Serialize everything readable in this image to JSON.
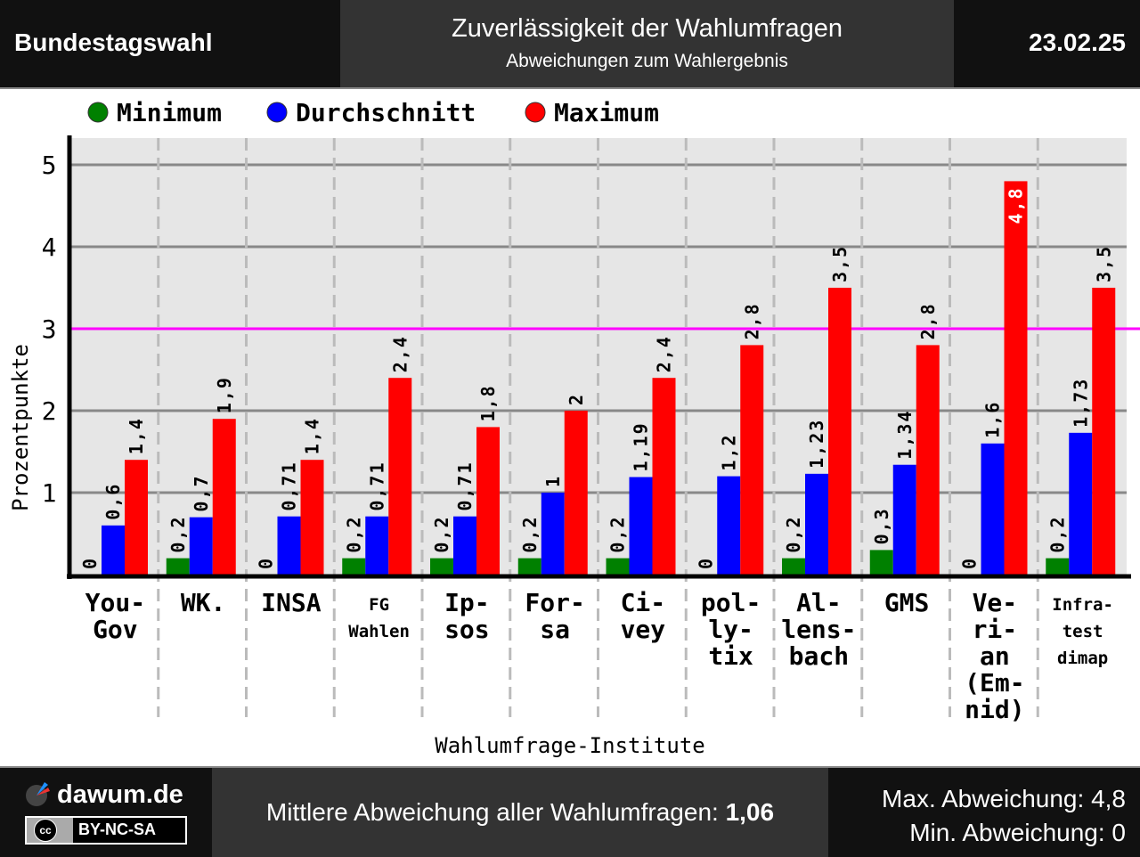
{
  "header": {
    "left": "Bundestagswahl",
    "title": "Zuverlässigkeit der Wahlumfragen",
    "subtitle": "Abweichungen zum Wahlergebnis",
    "date": "23.02.25"
  },
  "footer": {
    "site": "dawum.de",
    "license": "BY-NC-SA",
    "cc": "cc",
    "mean_label": "Mittlere Abweichung aller Wahlumfragen: ",
    "mean_value": "1,06",
    "max": "Max. Abweichung: 4,8",
    "min": "Min. Abweichung: 0"
  },
  "colors": {
    "min": "#008000",
    "avg": "#0000ff",
    "max": "#ff0000",
    "ref": "#ff00ff"
  },
  "chart_data": {
    "type": "bar",
    "xlabel": "Wahlumfrage-Institute",
    "ylabel": "Prozentpunkte",
    "ylim": [
      0,
      5.3
    ],
    "yticks": [
      1,
      2,
      3,
      4,
      5
    ],
    "reference_line": 3,
    "grid": true,
    "legend": "top-left",
    "categories": [
      [
        "You-",
        "Gov"
      ],
      [
        "WK."
      ],
      [
        "INSA"
      ],
      [
        "FG",
        "Wahlen"
      ],
      [
        "Ip-",
        "sos"
      ],
      [
        "For-",
        "sa"
      ],
      [
        "Ci-",
        "vey"
      ],
      [
        "pol-",
        "ly-",
        "tix"
      ],
      [
        "Al-",
        "lens-",
        "bach"
      ],
      [
        "GMS"
      ],
      [
        "Ve-",
        "ri-",
        "an",
        "(Em-",
        "nid)"
      ],
      [
        "Infra-",
        "test",
        "dimap"
      ]
    ],
    "small_categories": [
      3,
      11
    ],
    "series": [
      {
        "name": "Minimum",
        "values": [
          0,
          0.2,
          0,
          0.2,
          0.2,
          0.2,
          0.2,
          0,
          0.2,
          0.3,
          0,
          0.2
        ],
        "labels": [
          "0",
          "0,2",
          "0",
          "0,2",
          "0,2",
          "0,2",
          "0,2",
          "0",
          "0,2",
          "0,3",
          "0",
          "0,2"
        ]
      },
      {
        "name": "Durchschnitt",
        "values": [
          0.6,
          0.7,
          0.71,
          0.71,
          0.71,
          1,
          1.19,
          1.2,
          1.23,
          1.34,
          1.6,
          1.73
        ],
        "labels": [
          "0,6",
          "0,7",
          "0,71",
          "0,71",
          "0,71",
          "1",
          "1,19",
          "1,2",
          "1,23",
          "1,34",
          "1,6",
          "1,73"
        ]
      },
      {
        "name": "Maximum",
        "values": [
          1.4,
          1.9,
          1.4,
          2.4,
          1.8,
          2,
          2.4,
          2.8,
          3.5,
          2.8,
          4.8,
          3.5
        ],
        "labels": [
          "1,4",
          "1,9",
          "1,4",
          "2,4",
          "1,8",
          "2",
          "2,4",
          "2,8",
          "3,5",
          "2,8",
          "4,8",
          "3,5"
        ]
      }
    ]
  }
}
